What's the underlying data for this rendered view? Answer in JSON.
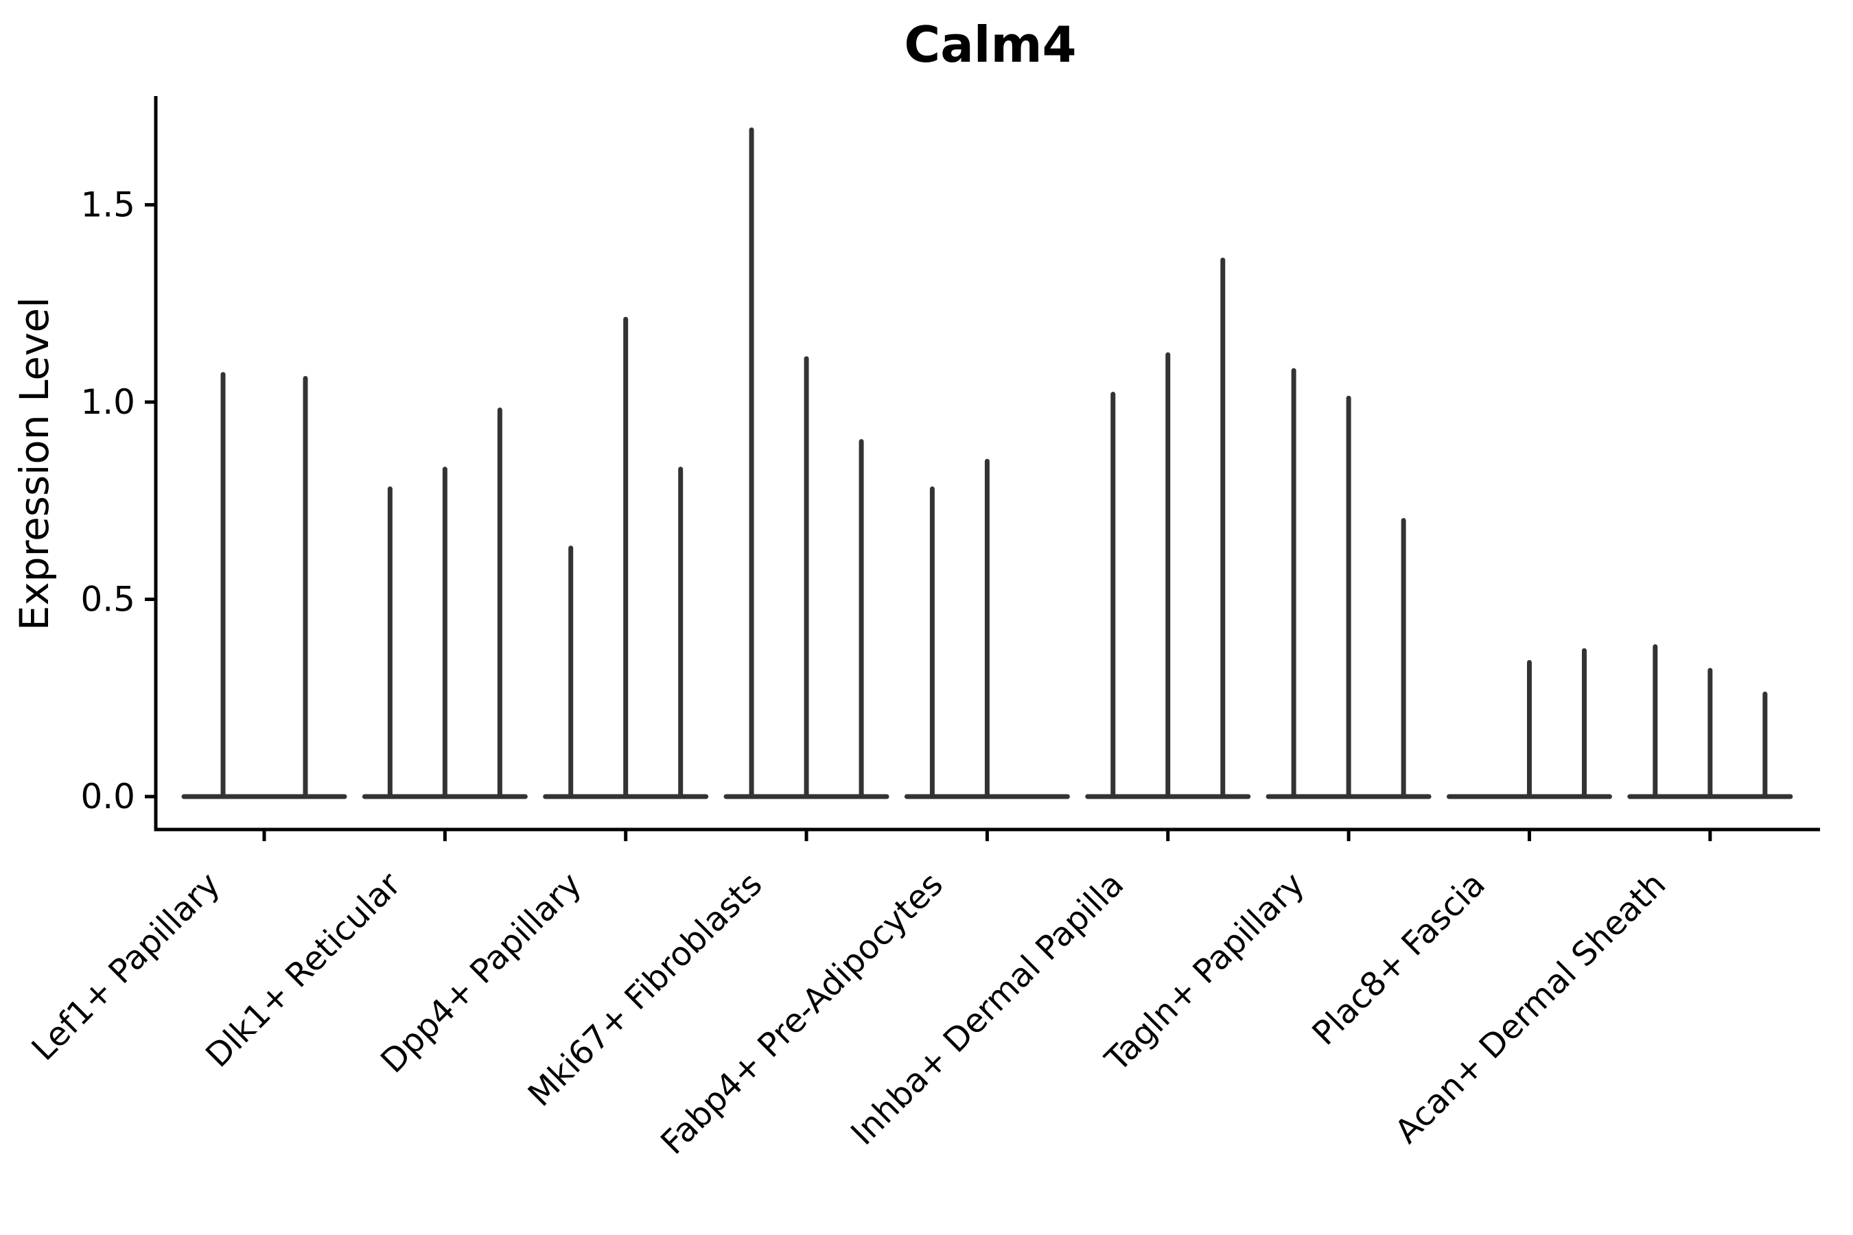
{
  "figure": {
    "background": "#ffffff",
    "axis_color": "#000000",
    "violin_color": "#333333"
  },
  "chart_data": {
    "type": "violin",
    "title": "Calm4",
    "xlabel": "",
    "ylabel": "Expression Level",
    "yticks": [
      "0.0",
      "0.5",
      "1.0",
      "1.5"
    ],
    "ylim": [
      -0.08,
      1.77
    ],
    "grid": false,
    "legend": null,
    "description": "Thin collapsed violins (spike = max expression per violin, flat base at 0); each category holds 2-3 sub-violins",
    "categories": [
      "Lef1+ Papillary",
      "Dlk1+ Reticular",
      "Dpp4+ Papillary",
      "Mki67+ Fibroblasts",
      "Fabp4+ Pre-Adipocytes",
      "Inhba+ Dermal Papilla",
      "Tagln+ Papillary",
      "Plac8+ Fascia",
      "Acan+ Dermal Sheath"
    ],
    "groups": [
      {
        "label": "Lef1+ Papillary",
        "violin_maxima": [
          1.07,
          1.06
        ]
      },
      {
        "label": "Dlk1+ Reticular",
        "violin_maxima": [
          0.78,
          0.83,
          0.98
        ]
      },
      {
        "label": "Dpp4+ Papillary",
        "violin_maxima": [
          0.63,
          1.21,
          0.83
        ]
      },
      {
        "label": "Mki67+ Fibroblasts",
        "violin_maxima": [
          1.69,
          1.11,
          0.9
        ]
      },
      {
        "label": "Fabp4+ Pre-Adipocytes",
        "violin_maxima": [
          0.78,
          0.85,
          0
        ]
      },
      {
        "label": "Inhba+ Dermal Papilla",
        "violin_maxima": [
          1.02,
          1.12,
          1.36
        ]
      },
      {
        "label": "Tagln+ Papillary",
        "violin_maxima": [
          1.08,
          1.01,
          0.7
        ]
      },
      {
        "label": "Plac8+ Fascia",
        "violin_maxima": [
          0,
          0.34,
          0.37
        ]
      },
      {
        "label": "Acan+ Dermal Sheath",
        "violin_maxima": [
          0.38,
          0.32,
          0.26
        ]
      }
    ]
  }
}
